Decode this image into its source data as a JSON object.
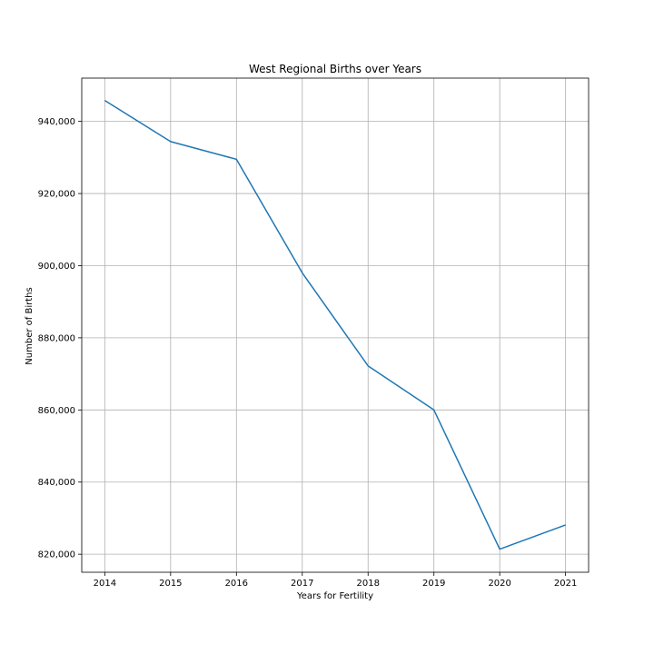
{
  "chart_data": {
    "type": "line",
    "title": "West Regional Births over Years",
    "xlabel": "Years for Fertility",
    "ylabel": "Number of Births",
    "x": [
      2014,
      2015,
      2016,
      2017,
      2018,
      2019,
      2020,
      2021
    ],
    "series": [
      {
        "values": [
          945800,
          934400,
          929500,
          898000,
          872200,
          860000,
          821400,
          828100
        ],
        "color": "#1f77b4"
      }
    ],
    "xlim": [
      2013.65,
      2021.35
    ],
    "ylim": [
      815000,
      952000
    ],
    "yticks": [
      820000,
      840000,
      860000,
      880000,
      900000,
      920000,
      940000
    ],
    "ytick_labels": [
      "820,000",
      "840,000",
      "860,000",
      "880,000",
      "900,000",
      "920,000",
      "940,000"
    ],
    "xtick_labels": [
      "2014",
      "2015",
      "2016",
      "2017",
      "2018",
      "2019",
      "2020",
      "2021"
    ],
    "grid": true,
    "legend": "none"
  }
}
